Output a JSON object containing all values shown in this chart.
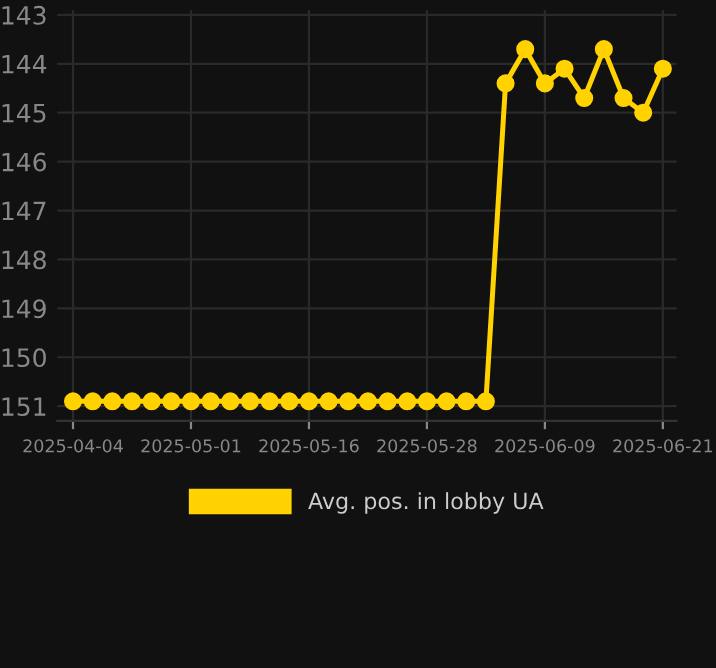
{
  "chart_data": {
    "type": "line",
    "categories": [
      "2025-04-04",
      null,
      null,
      null,
      null,
      null,
      "2025-05-01",
      null,
      null,
      null,
      null,
      null,
      "2025-05-16",
      null,
      null,
      null,
      null,
      null,
      "2025-05-28",
      null,
      null,
      null,
      null,
      null,
      "2025-06-09",
      null,
      null,
      null,
      null,
      null,
      "2025-06-21"
    ],
    "series": [
      {
        "name": "Avg. pos. in lobby UA",
        "color": "#ffd200",
        "values": [
          150.9,
          150.9,
          150.9,
          150.9,
          150.9,
          150.9,
          150.9,
          150.9,
          150.9,
          150.9,
          150.9,
          150.9,
          150.9,
          150.9,
          150.9,
          150.9,
          150.9,
          150.9,
          150.9,
          150.9,
          150.9,
          150.9,
          144.4,
          143.7,
          144.4,
          144.1,
          144.7,
          143.7,
          144.7,
          145.0,
          144.1
        ]
      }
    ],
    "ylim": [
      151.3,
      142.9
    ],
    "yticks": [
      143,
      144,
      145,
      146,
      147,
      148,
      149,
      150,
      151
    ],
    "grid": true,
    "legend": "bottom",
    "marker": "circle",
    "line_style": "solid"
  }
}
